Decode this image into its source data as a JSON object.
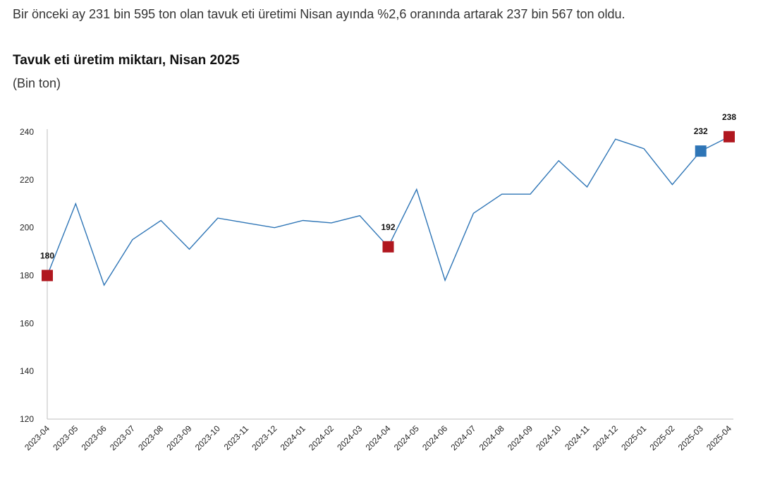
{
  "intro_text": "Bir önceki ay 231 bin 595 ton olan tavuk eti üretimi Nisan ayında %2,6 oranında artarak 237 bin 567 ton oldu.",
  "chart_data": {
    "type": "line",
    "title": "Tavuk eti üretim miktarı, Nisan 2025",
    "subtitle": "(Bin ton)",
    "xlabel": "",
    "ylabel": "",
    "ylim": [
      120,
      240
    ],
    "yticks": [
      120,
      140,
      160,
      180,
      200,
      220,
      240
    ],
    "categories": [
      "2023-04",
      "2023-05",
      "2023-06",
      "2023-07",
      "2023-08",
      "2023-09",
      "2023-10",
      "2023-11",
      "2023-12",
      "2024-01",
      "2024-02",
      "2024-03",
      "2024-04",
      "2024-05",
      "2024-06",
      "2024-07",
      "2024-08",
      "2024-09",
      "2024-10",
      "2024-11",
      "2024-12",
      "2025-01",
      "2025-02",
      "2025-03",
      "2025-04"
    ],
    "series": [
      {
        "values": [
          180,
          210,
          176,
          195,
          203,
          191,
          204,
          202,
          200,
          203,
          202,
          205,
          192,
          216,
          178,
          206,
          214,
          214,
          228,
          217,
          237,
          233,
          218,
          232,
          238
        ]
      }
    ],
    "markers": [
      {
        "index": 0,
        "label": "180",
        "color": "#b0171f"
      },
      {
        "index": 12,
        "label": "192",
        "color": "#b0171f"
      },
      {
        "index": 23,
        "label": "232",
        "color": "#2e75b6"
      },
      {
        "index": 24,
        "label": "238",
        "color": "#b0171f"
      }
    ],
    "line_color": "#2e75b6",
    "grid": false
  }
}
